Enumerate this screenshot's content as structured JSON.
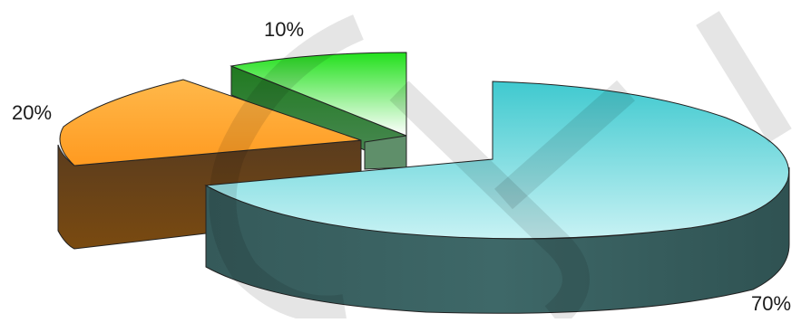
{
  "chart_data": {
    "type": "pie",
    "style": "3d-exploded",
    "slices": [
      {
        "value": 70,
        "label": "70%",
        "top_color": "#3fc9cf",
        "top_color_light": "#c8f2f4",
        "side_color": "#3b6464"
      },
      {
        "value": 20,
        "label": "20%",
        "top_color": "#ff9a20",
        "top_color_light": "#ffb84a",
        "side_color": "#6a3f10"
      },
      {
        "value": 10,
        "label": "10%",
        "top_color": "#22e01c",
        "top_color_light": "#ffffff",
        "side_color": "#2b7d2b"
      }
    ],
    "legend": "none",
    "watermark_letters": "CST"
  }
}
